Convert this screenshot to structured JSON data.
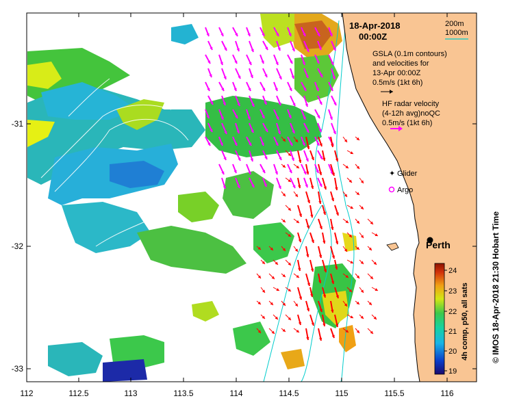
{
  "map": {
    "title_date": "18-Apr-2018",
    "title_time": "00:00Z",
    "x_ticks": [
      "112",
      "112.5",
      "113",
      "113.5",
      "114",
      "114.5",
      "115",
      "115.5",
      "116"
    ],
    "y_ticks": [
      "-31",
      "-32",
      "-33"
    ],
    "depth_legend": [
      "200m",
      "1000m"
    ],
    "gsla_note": [
      "GSLA (0.1m contours)",
      "and velocities for",
      "13-Apr 00:00Z",
      "0.5m/s (1kt 6h)"
    ],
    "hf_note": [
      "HF radar velocity",
      "(4-12h avg)noQC",
      "0.5m/s (1kt 6h)"
    ],
    "legend_glider": "Glider",
    "legend_argo": "Argo",
    "city": "Perth",
    "colorbar_label": "4h comp, p50, all sats",
    "colorbar_ticks": [
      "24",
      "23",
      "22",
      "21",
      "20",
      "19"
    ],
    "credit": "© IMOS 18-Apr-2018 21:30 Hobart Time",
    "colors": {
      "land": "#f9c593",
      "hf_arrow": "#ff00ff",
      "gsla_arrow": "#ff0000",
      "contour": "#00cccc",
      "depth_1000": "#00cccc"
    }
  }
}
